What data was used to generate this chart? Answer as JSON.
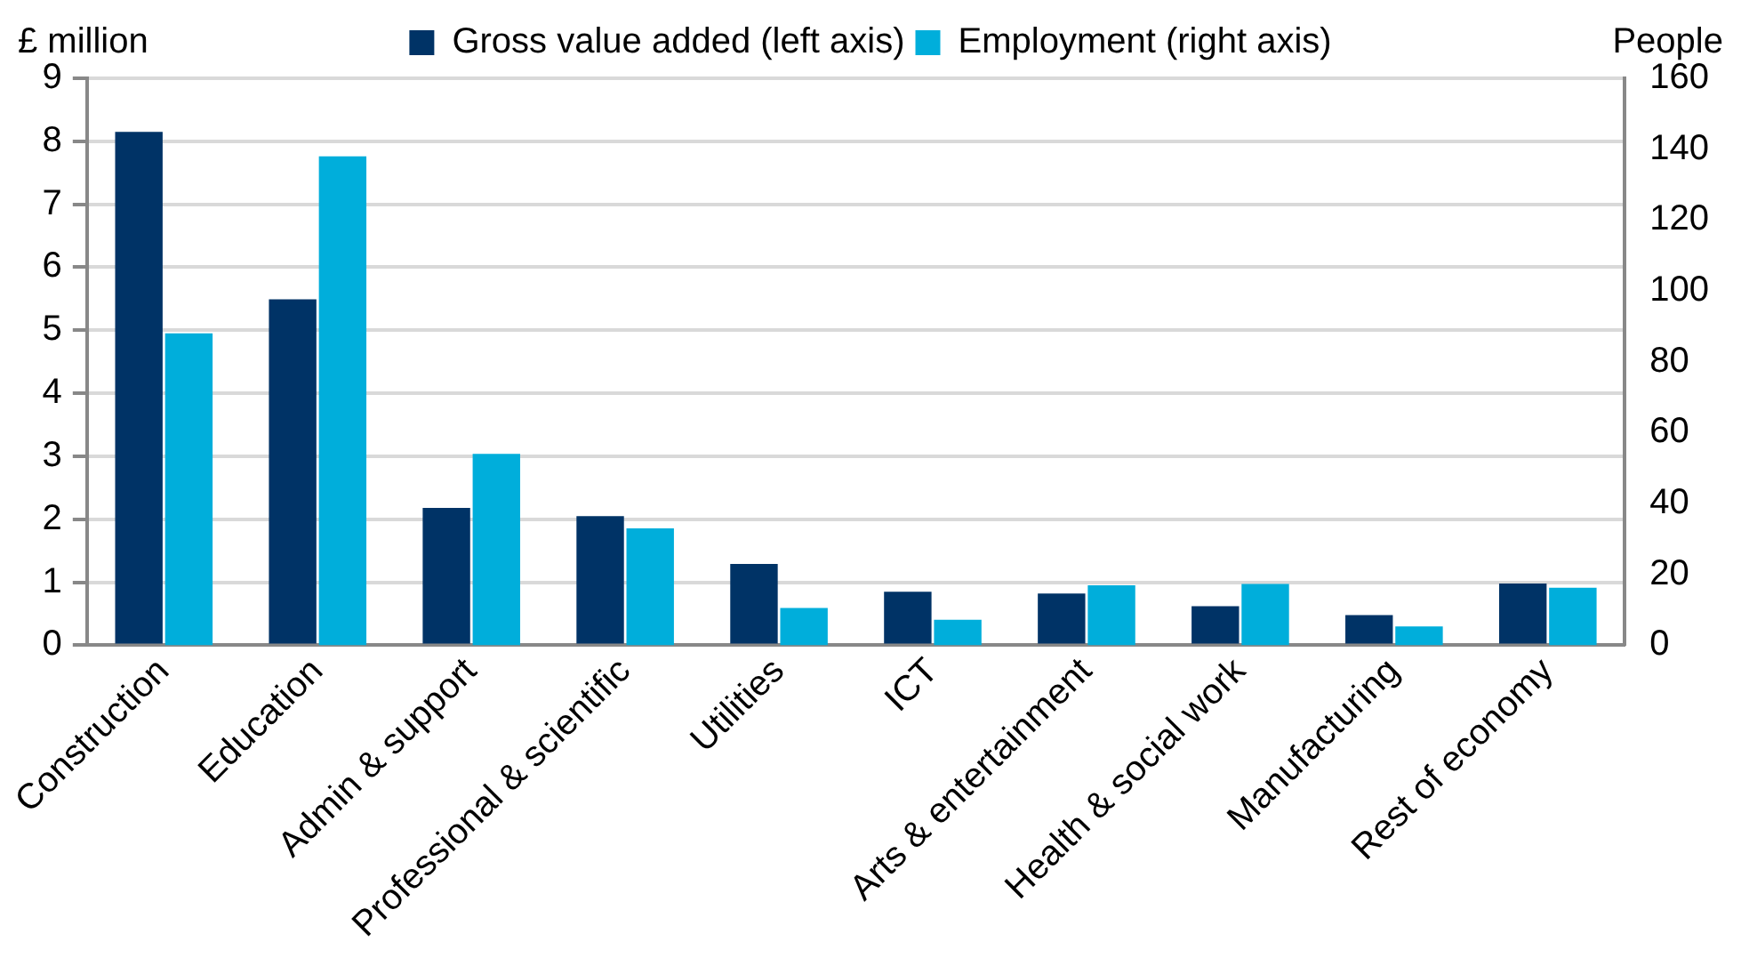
{
  "chart_data": {
    "type": "bar",
    "ylabel": "£ million",
    "y2label": "People",
    "categories": [
      "Construction",
      "Education",
      "Admin & support",
      "Professional & scientific",
      "Utilities",
      "ICT",
      "Arts & entertainment",
      "Health & social work",
      "Manufacturing",
      "Rest of economy"
    ],
    "series": [
      {
        "name": "Gross value added (left axis)",
        "color": "#003366",
        "values": [
          8.15,
          5.49,
          2.18,
          2.05,
          1.29,
          0.85,
          0.82,
          0.62,
          0.48,
          0.98
        ]
      },
      {
        "name": "Employment (right axis)",
        "color": "#00aedb",
        "axis": "y2",
        "values": [
          88,
          138,
          54,
          33,
          10.5,
          7.2,
          16.9,
          17.3,
          5.3,
          16.2
        ]
      }
    ],
    "ylim": [
      0,
      9
    ],
    "yticks": [
      0,
      1,
      2,
      3,
      4,
      5,
      6,
      7,
      8,
      9
    ],
    "y2lim": [
      0,
      160
    ],
    "y2ticks": [
      0,
      20,
      40,
      60,
      80,
      100,
      120,
      140,
      160
    ],
    "grid": "y",
    "legend": "top"
  }
}
